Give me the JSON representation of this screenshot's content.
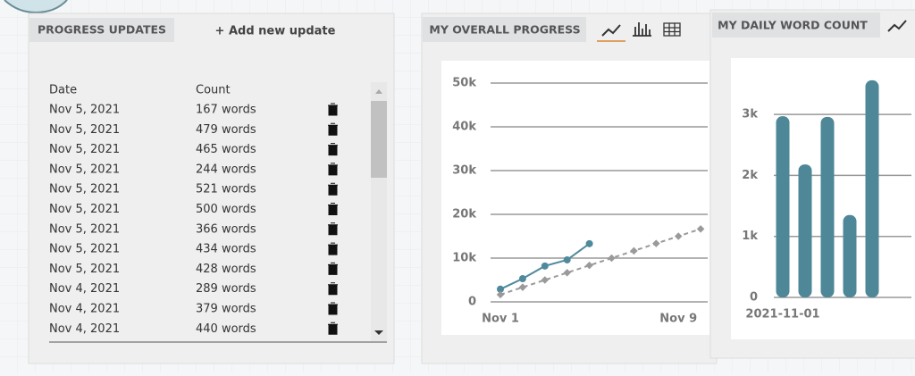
{
  "progress_updates": {
    "tab": "PROGRESS UPDATES",
    "add_button": "+ Add new update",
    "columns": [
      "Date",
      "Count"
    ],
    "rows": [
      [
        "Nov 5, 2021",
        "167 words"
      ],
      [
        "Nov 5, 2021",
        "479 words"
      ],
      [
        "Nov 5, 2021",
        "465 words"
      ],
      [
        "Nov 5, 2021",
        "244 words"
      ],
      [
        "Nov 5, 2021",
        "521 words"
      ],
      [
        "Nov 5, 2021",
        "500 words"
      ],
      [
        "Nov 5, 2021",
        "366 words"
      ],
      [
        "Nov 5, 2021",
        "434 words"
      ],
      [
        "Nov 5, 2021",
        "428 words"
      ],
      [
        "Nov 4, 2021",
        "289 words"
      ],
      [
        "Nov 4, 2021",
        "379 words"
      ],
      [
        "Nov 4, 2021",
        "440 words"
      ]
    ]
  },
  "chart_data": [
    {
      "type": "line",
      "title": "MY OVERALL PROGRESS",
      "categories": [
        "Nov 1",
        null,
        null,
        null,
        null,
        null,
        null,
        null,
        "Nov 9",
        null
      ],
      "series": [
        {
          "color": "#4f8a9c",
          "style": "solid",
          "values": [
            2900,
            5300,
            8200,
            9600,
            13300,
            null,
            null,
            null,
            null,
            null
          ]
        },
        {
          "color": "#9a9a9a",
          "style": "dashed",
          "values": [
            1667,
            3333,
            5000,
            6667,
            8333,
            10000,
            11667,
            13333,
            15000,
            16667
          ]
        }
      ],
      "ylim": [
        0,
        55000
      ],
      "yticks": [
        0,
        {
          "value": 10000,
          "label": "10k"
        },
        {
          "value": 20000,
          "label": "20k"
        },
        {
          "value": 30000,
          "label": "30k"
        },
        {
          "value": 40000,
          "label": "40k"
        },
        {
          "value": 50000,
          "label": "50k"
        }
      ],
      "grid": true
    },
    {
      "type": "bar",
      "title": "MY DAILY WORD COUNT",
      "categories": [
        "2021-11-01",
        null,
        null,
        null,
        null
      ],
      "values": [
        2970,
        2180,
        2960,
        1350,
        3560
      ],
      "color": "#4e8797",
      "ylim": [
        0,
        3800
      ],
      "yticks": [
        0,
        {
          "value": 1000,
          "label": "1k"
        },
        {
          "value": 2000,
          "label": "2k"
        },
        {
          "value": 3000,
          "label": "3k"
        }
      ],
      "grid": true
    }
  ]
}
